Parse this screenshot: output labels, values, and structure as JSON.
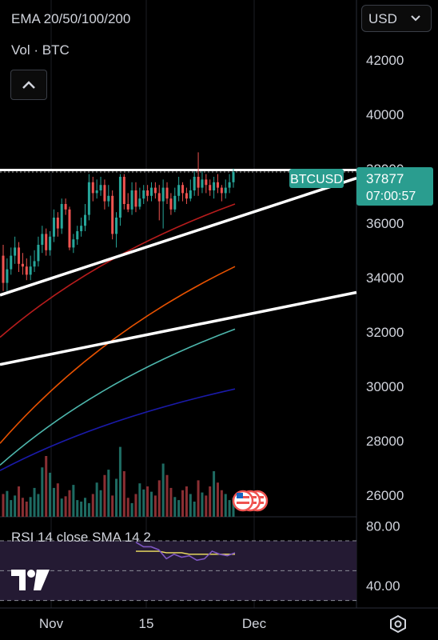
{
  "header": {
    "indicator_legend": "EMA 20/50/100/200",
    "volume_legend": "Vol · BTC"
  },
  "currency_select": {
    "value": "USD"
  },
  "rsi_legend": "RSI 14 close SMA 14 2",
  "price_tag": {
    "symbol": "BTCUSD",
    "price": "37877",
    "countdown": "07:00:57"
  },
  "icons": {
    "collapse": "chevron-up-icon",
    "currency_dropdown": "chevron-down-icon",
    "brand": "tradingview-logo-icon",
    "settings": "settings-hexagon-icon",
    "events": "us-flag-event-icon"
  },
  "colors": {
    "up": "#26a69a",
    "down": "#ef5350",
    "vol_up": "#1e6b62",
    "vol_down": "#8a2f33",
    "ema20": "#b71c1c",
    "ema50": "#e65100",
    "ema100": "#4db6ac",
    "ema200": "#1a1aa8",
    "rsi": "#7e57c2",
    "rsi_sma": "#f5e663",
    "tag": "#2a9d8f"
  },
  "chart_data": {
    "type": "candlestick",
    "x_ticks": [
      "Nov",
      "15",
      "Dec"
    ],
    "y_ticks": [
      26000,
      28000,
      30000,
      32000,
      34000,
      36000,
      38000,
      40000,
      42000
    ],
    "ylim": [
      25200,
      44200
    ],
    "last_price": 37877,
    "candles": [
      [
        34800,
        33800,
        35200,
        33500
      ],
      [
        33800,
        34300,
        34700,
        33500
      ],
      [
        34300,
        34800,
        35100,
        34100
      ],
      [
        34800,
        35100,
        35500,
        34500
      ],
      [
        35100,
        34500,
        35300,
        34200
      ],
      [
        34500,
        34400,
        34900,
        34100
      ],
      [
        34400,
        34100,
        34700,
        33900
      ],
      [
        34100,
        34400,
        34800,
        33900
      ],
      [
        34400,
        34600,
        35000,
        34200
      ],
      [
        34600,
        35200,
        35500,
        34400
      ],
      [
        35200,
        35600,
        35900,
        34900
      ],
      [
        35600,
        35000,
        35800,
        34800
      ],
      [
        35000,
        35500,
        35700,
        34800
      ],
      [
        35500,
        36200,
        36500,
        35300
      ],
      [
        36200,
        35800,
        36400,
        35500
      ],
      [
        35800,
        36700,
        36900,
        35600
      ],
      [
        36700,
        36500,
        36900,
        36300
      ],
      [
        36500,
        35100,
        36600,
        35000
      ],
      [
        35100,
        35400,
        35600,
        34900
      ],
      [
        35400,
        35700,
        35900,
        35200
      ],
      [
        35700,
        35900,
        36200,
        35500
      ],
      [
        35900,
        36300,
        36700,
        35700
      ],
      [
        36300,
        37500,
        37800,
        36100
      ],
      [
        37500,
        37100,
        37700,
        36800
      ],
      [
        37100,
        37200,
        37600,
        36900
      ],
      [
        37200,
        37400,
        37700,
        37000
      ],
      [
        37400,
        36800,
        37600,
        36500
      ],
      [
        36800,
        37000,
        37400,
        36600
      ],
      [
        37000,
        35600,
        37200,
        35400
      ],
      [
        35600,
        36200,
        36400,
        35100
      ],
      [
        36200,
        37700,
        37800,
        35900
      ],
      [
        37700,
        36700,
        37800,
        36500
      ],
      [
        36700,
        36500,
        37100,
        36400
      ],
      [
        36500,
        37200,
        37500,
        36300
      ],
      [
        37200,
        36600,
        37500,
        36400
      ],
      [
        36600,
        36900,
        37300,
        36500
      ],
      [
        36900,
        37200,
        37400,
        36700
      ],
      [
        37200,
        37000,
        37400,
        36800
      ],
      [
        37000,
        37300,
        37500,
        36800
      ],
      [
        37300,
        37100,
        37500,
        36900
      ],
      [
        37100,
        36800,
        37400,
        36100
      ],
      [
        36800,
        37300,
        37600,
        35800
      ],
      [
        37300,
        36900,
        37500,
        36700
      ],
      [
        36900,
        36500,
        37100,
        36300
      ],
      [
        36500,
        37000,
        37300,
        36400
      ],
      [
        37000,
        37400,
        37700,
        36800
      ],
      [
        37400,
        37100,
        37500,
        36800
      ],
      [
        37100,
        36900,
        37300,
        36700
      ],
      [
        36900,
        37200,
        37600,
        36800
      ],
      [
        37200,
        37700,
        37900,
        37000
      ],
      [
        37700,
        37300,
        38600,
        37000
      ],
      [
        37300,
        37600,
        37900,
        37100
      ],
      [
        37600,
        37400,
        37800,
        37100
      ],
      [
        37400,
        37200,
        37600,
        37000
      ],
      [
        37200,
        37500,
        37700,
        36900
      ],
      [
        37500,
        37300,
        37800,
        37100
      ],
      [
        37300,
        37100,
        37400,
        36800
      ],
      [
        37100,
        37300,
        37600,
        36900
      ],
      [
        37300,
        37500,
        37800,
        37100
      ],
      [
        37500,
        37877,
        38000,
        37300
      ]
    ],
    "volume": [
      0.3,
      0.34,
      0.22,
      0.28,
      0.4,
      0.25,
      0.2,
      0.26,
      0.38,
      0.3,
      0.65,
      0.8,
      0.58,
      0.38,
      0.44,
      0.24,
      0.27,
      0.35,
      0.42,
      0.22,
      0.2,
      0.25,
      0.18,
      0.3,
      0.45,
      0.35,
      0.55,
      0.62,
      0.28,
      0.5,
      0.92,
      0.6,
      0.25,
      0.18,
      0.3,
      0.44,
      0.36,
      0.4,
      0.33,
      0.28,
      0.48,
      0.7,
      0.55,
      0.38,
      0.26,
      0.22,
      0.35,
      0.4,
      0.3,
      0.2,
      0.48,
      0.32,
      0.28,
      0.4,
      0.6,
      0.45,
      0.35,
      0.3,
      0.22,
      0.25
    ],
    "ema": [
      {
        "name": "EMA 20",
        "start": 31800,
        "end": 36700
      },
      {
        "name": "EMA 50",
        "start": 27900,
        "end": 34400
      },
      {
        "name": "EMA 100",
        "start": 27100,
        "end": 32100
      },
      {
        "name": "EMA 200",
        "start": 26900,
        "end": 29900
      }
    ],
    "rsi": {
      "ticks": [
        "80.00",
        "40.00"
      ],
      "levels": [
        70,
        50,
        30
      ],
      "ylim": [
        25,
        85
      ],
      "rsi_values": [
        69,
        66,
        66,
        64,
        58,
        61,
        59,
        60,
        57,
        58,
        63,
        61,
        60,
        62
      ],
      "sma_values": [
        63,
        63,
        63,
        63,
        62,
        62,
        62,
        61,
        61,
        61,
        61,
        61,
        61,
        61
      ]
    }
  }
}
